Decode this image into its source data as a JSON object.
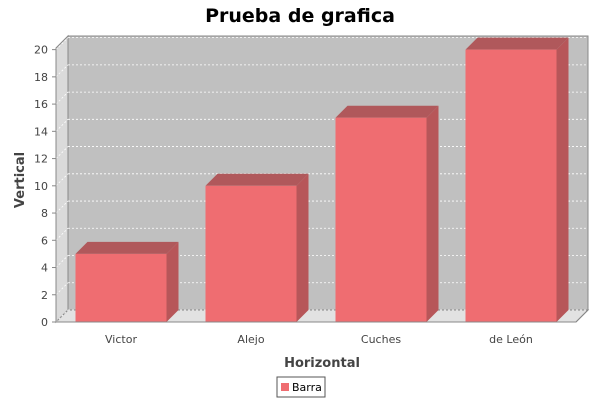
{
  "chart_data": {
    "type": "bar",
    "title": "Prueba de grafica",
    "xlabel": "Horizontal",
    "ylabel": "Vertical",
    "categories": [
      "Victor",
      "Alejo",
      "Cuches",
      "de León"
    ],
    "series": [
      {
        "name": "Barra",
        "values": [
          5,
          10,
          15,
          20
        ]
      }
    ],
    "ylim": [
      0,
      21
    ],
    "yticks": [
      0,
      2,
      4,
      6,
      8,
      10,
      12,
      14,
      16,
      18,
      20
    ],
    "grid": true,
    "legend_position": "bottom",
    "style": "3d",
    "colors": {
      "bar_front": "#EF6D71",
      "bar_side": "#B75659",
      "bar_top": "#B0585B",
      "plot_back": "#C0C0C0",
      "plot_floor": "#E2E2E2",
      "plot_wall": "#DADADA"
    }
  }
}
